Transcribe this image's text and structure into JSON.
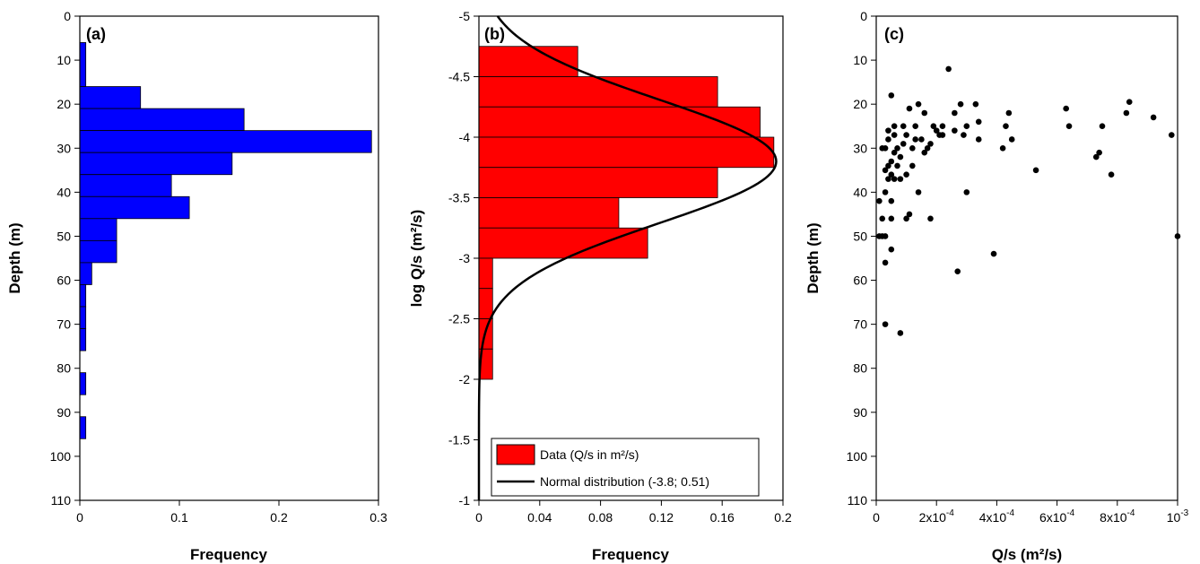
{
  "chart_data": [
    {
      "panel": "(a)",
      "type": "bar",
      "orientation": "horizontal",
      "xlabel": "Frequency",
      "ylabel": "Depth (m)",
      "xlim": [
        0,
        0.3
      ],
      "ylim": [
        0,
        110
      ],
      "y_inverted": true,
      "xticks": [
        "0",
        "0.1",
        "0.2",
        "0.3"
      ],
      "yticks": [
        "0",
        "10",
        "20",
        "30",
        "40",
        "50",
        "60",
        "70",
        "80",
        "90",
        "100",
        "110"
      ],
      "bar_color": "#0000ff",
      "bins": [
        {
          "from": 6,
          "to": 16,
          "value": 0.006
        },
        {
          "from": 16,
          "to": 21,
          "value": 0.061
        },
        {
          "from": 21,
          "to": 26,
          "value": 0.165
        },
        {
          "from": 26,
          "to": 31,
          "value": 0.293
        },
        {
          "from": 31,
          "to": 36,
          "value": 0.153
        },
        {
          "from": 36,
          "to": 41,
          "value": 0.092
        },
        {
          "from": 41,
          "to": 46,
          "value": 0.11
        },
        {
          "from": 46,
          "to": 51,
          "value": 0.037
        },
        {
          "from": 51,
          "to": 56,
          "value": 0.037
        },
        {
          "from": 56,
          "to": 61,
          "value": 0.012
        },
        {
          "from": 61,
          "to": 66,
          "value": 0.006
        },
        {
          "from": 66,
          "to": 71,
          "value": 0.006
        },
        {
          "from": 71,
          "to": 76,
          "value": 0.006
        },
        {
          "from": 81,
          "to": 86,
          "value": 0.006
        },
        {
          "from": 91,
          "to": 96,
          "value": 0.006
        }
      ]
    },
    {
      "panel": "(b)",
      "type": "bar",
      "orientation": "horizontal",
      "xlabel": "Frequency",
      "ylabel": "log Q/s (m²/s)",
      "xlim": [
        0,
        0.2
      ],
      "ylim": [
        -5,
        -1
      ],
      "y_top_at_min": true,
      "xticks": [
        "0",
        "0.04",
        "0.08",
        "0.12",
        "0.16",
        "0.2"
      ],
      "yticks": [
        "-5",
        "-4.5",
        "-4",
        "-3.5",
        "-3",
        "-2.5",
        "-2",
        "-1.5",
        "-1"
      ],
      "bar_color": "#ff0000",
      "bins": [
        {
          "from": -4.75,
          "to": -4.5,
          "value": 0.065
        },
        {
          "from": -4.5,
          "to": -4.25,
          "value": 0.157
        },
        {
          "from": -4.25,
          "to": -4.0,
          "value": 0.185
        },
        {
          "from": -4.0,
          "to": -3.75,
          "value": 0.194
        },
        {
          "from": -3.75,
          "to": -3.5,
          "value": 0.157
        },
        {
          "from": -3.5,
          "to": -3.25,
          "value": 0.092
        },
        {
          "from": -3.25,
          "to": -3.0,
          "value": 0.111
        },
        {
          "from": -3.0,
          "to": -2.75,
          "value": 0.009
        },
        {
          "from": -2.75,
          "to": -2.5,
          "value": 0.009
        },
        {
          "from": -2.5,
          "to": -2.25,
          "value": 0.009
        },
        {
          "from": -2.25,
          "to": -2.0,
          "value": 0.009
        }
      ],
      "curve": {
        "mean": -3.8,
        "sd": 0.51,
        "scale": 0.25,
        "from": -5,
        "to": -1
      },
      "legend": {
        "placement": "bottom",
        "entries": [
          "Data (Q/s in m²/s)",
          "Normal distribution (-3.8; 0.51)"
        ]
      }
    },
    {
      "panel": "(c)",
      "type": "scatter",
      "xlabel": "Q/s (m²/s)",
      "ylabel": "Depth (m)",
      "xlim": [
        0,
        0.001
      ],
      "ylim": [
        0,
        110
      ],
      "y_inverted": true,
      "xticks": [
        {
          "value": 0,
          "base": "0",
          "exp": ""
        },
        {
          "value": 0.0002,
          "base": "2x10",
          "exp": "-4"
        },
        {
          "value": 0.0004,
          "base": "4x10",
          "exp": "-4"
        },
        {
          "value": 0.0006,
          "base": "6x10",
          "exp": "-4"
        },
        {
          "value": 0.0008,
          "base": "8x10",
          "exp": "-4"
        },
        {
          "value": 0.001,
          "base": "10",
          "exp": "-3"
        }
      ],
      "yticks": [
        "0",
        "10",
        "20",
        "30",
        "40",
        "50",
        "60",
        "70",
        "80",
        "90",
        "100",
        "110"
      ],
      "points": [
        [
          0.00024,
          12
        ],
        [
          5e-05,
          18
        ],
        [
          9e-05,
          25
        ],
        [
          0.00011,
          21
        ],
        [
          0.00014,
          20
        ],
        [
          0.00016,
          22
        ],
        [
          0.00019,
          25
        ],
        [
          0.00022,
          27
        ],
        [
          0.00026,
          22
        ],
        [
          0.00028,
          20
        ],
        [
          0.00033,
          20
        ],
        [
          0.00034,
          24
        ],
        [
          0.00044,
          22
        ],
        [
          0.00045,
          28
        ],
        [
          0.00043,
          25
        ],
        [
          0.00063,
          21
        ],
        [
          0.00064,
          25
        ],
        [
          0.00084,
          19.5
        ],
        [
          0.00083,
          22
        ],
        [
          0.00092,
          23
        ],
        [
          0.00098,
          27
        ],
        [
          0.00075,
          25
        ],
        [
          0.00074,
          31
        ],
        [
          0.00073,
          32
        ],
        [
          0.00078,
          36
        ],
        [
          0.00053,
          35
        ],
        [
          0.00042,
          30
        ],
        [
          0.00034,
          28
        ],
        [
          0.0003,
          25
        ],
        [
          0.00029,
          27
        ],
        [
          0.00026,
          26
        ],
        [
          0.0002,
          26
        ],
        [
          0.00021,
          27
        ],
        [
          0.00022,
          25
        ],
        [
          0.00018,
          29
        ],
        [
          0.00016,
          31
        ],
        [
          0.00015,
          28
        ],
        [
          0.00013,
          25
        ],
        [
          0.00012,
          30
        ],
        [
          0.0001,
          27
        ],
        [
          9e-05,
          29
        ],
        [
          8e-05,
          32
        ],
        [
          7e-05,
          30
        ],
        [
          6e-05,
          31
        ],
        [
          5e-05,
          33
        ],
        [
          4e-05,
          34
        ],
        [
          3e-05,
          30
        ],
        [
          2e-05,
          30
        ],
        [
          4e-05,
          28
        ],
        [
          6e-05,
          27
        ],
        [
          7e-05,
          34
        ],
        [
          5e-05,
          36
        ],
        [
          4e-05,
          37
        ],
        [
          3e-05,
          35
        ],
        [
          6e-05,
          37
        ],
        [
          8e-05,
          37
        ],
        [
          0.0001,
          36
        ],
        [
          0.00012,
          34
        ],
        [
          0.00014,
          40
        ],
        [
          0.00011,
          45
        ],
        [
          0.0001,
          46
        ],
        [
          0.00018,
          46
        ],
        [
          0.0003,
          40
        ],
        [
          3e-05,
          40
        ],
        [
          1e-05,
          42
        ],
        [
          5e-05,
          42
        ],
        [
          2e-05,
          46
        ],
        [
          5e-05,
          46
        ],
        [
          2e-05,
          50
        ],
        [
          3e-05,
          50
        ],
        [
          1e-05,
          50
        ],
        [
          5e-05,
          53
        ],
        [
          3e-05,
          56
        ],
        [
          0.00027,
          58
        ],
        [
          0.00039,
          54
        ],
        [
          3e-05,
          70
        ],
        [
          8e-05,
          72
        ],
        [
          0.001,
          50
        ],
        [
          0.00013,
          28
        ],
        [
          0.00017,
          30
        ],
        [
          6e-05,
          25
        ],
        [
          4e-05,
          26
        ]
      ]
    }
  ]
}
